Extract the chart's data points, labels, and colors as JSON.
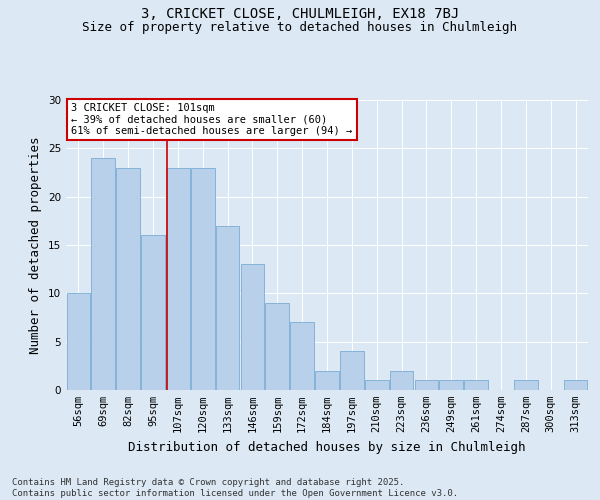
{
  "title_line1": "3, CRICKET CLOSE, CHULMLEIGH, EX18 7BJ",
  "title_line2": "Size of property relative to detached houses in Chulmleigh",
  "xlabel": "Distribution of detached houses by size in Chulmleigh",
  "ylabel": "Number of detached properties",
  "categories": [
    "56sqm",
    "69sqm",
    "82sqm",
    "95sqm",
    "107sqm",
    "120sqm",
    "133sqm",
    "146sqm",
    "159sqm",
    "172sqm",
    "184sqm",
    "197sqm",
    "210sqm",
    "223sqm",
    "236sqm",
    "249sqm",
    "261sqm",
    "274sqm",
    "287sqm",
    "300sqm",
    "313sqm"
  ],
  "values": [
    10,
    24,
    23,
    16,
    23,
    23,
    17,
    13,
    9,
    7,
    2,
    4,
    1,
    2,
    1,
    1,
    1,
    0,
    1,
    0,
    1
  ],
  "bar_color": "#b8d0ea",
  "bar_edgecolor": "#7aadd4",
  "background_color": "#dce9f5",
  "vline_x_index": 3.55,
  "vline_color": "#cc0000",
  "annotation_text": "3 CRICKET CLOSE: 101sqm\n← 39% of detached houses are smaller (60)\n61% of semi-detached houses are larger (94) →",
  "annotation_box_color": "#ffffff",
  "annotation_box_edgecolor": "#cc0000",
  "ylim": [
    0,
    30
  ],
  "yticks": [
    0,
    5,
    10,
    15,
    20,
    25,
    30
  ],
  "footnote": "Contains HM Land Registry data © Crown copyright and database right 2025.\nContains public sector information licensed under the Open Government Licence v3.0.",
  "title_fontsize": 10,
  "subtitle_fontsize": 9,
  "axis_label_fontsize": 9,
  "tick_fontsize": 7.5,
  "annotation_fontsize": 7.5,
  "footnote_fontsize": 6.5
}
